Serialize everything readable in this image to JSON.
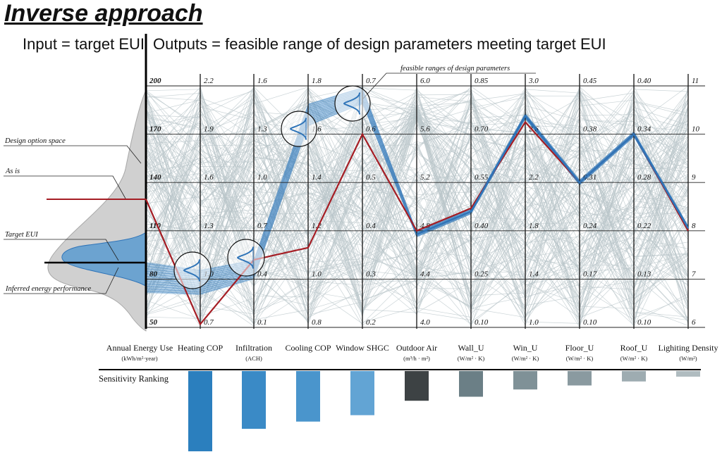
{
  "title": "Inverse approach",
  "input_label": "Input = target EUI",
  "output_label": "Outputs = feasible range of design parameters meeting target EUI",
  "annotations": {
    "design_option_space": "Design option space",
    "as_is": "As is",
    "target_eui": "Target EUI",
    "inferred_energy_performance": "Inferred energy performance",
    "feasible_ranges": "feasible ranges of design parameters"
  },
  "colors": {
    "background_lines": "#b9c6ca",
    "as_is": "#a51d24",
    "feasible": "#2f74b8",
    "density": "#d0d0d0"
  },
  "chart_data": {
    "type": "parallel-coordinates",
    "axes": [
      {
        "name": "Annual Energy Use",
        "unit": "(kWh/m²·year)",
        "ticks": [
          "200",
          "170",
          "140",
          "110",
          "80",
          "50"
        ]
      },
      {
        "name": "Heating COP",
        "unit": "",
        "ticks": [
          "2.2",
          "1.9",
          "1.6",
          "1.3",
          "1.0",
          "0.7"
        ]
      },
      {
        "name": "Infiltration",
        "unit": "(ACH)",
        "ticks": [
          "1.6",
          "1.3",
          "1.0",
          "0.7",
          "0.4",
          "0.1"
        ]
      },
      {
        "name": "Cooling COP",
        "unit": "",
        "ticks": [
          "1.8",
          "1.6",
          "1.4",
          "1.2",
          "1.0",
          "0.8"
        ]
      },
      {
        "name": "Window SHGC",
        "unit": "",
        "ticks": [
          "0.7",
          "0.6",
          "0.5",
          "0.4",
          "0.3",
          "0.2"
        ]
      },
      {
        "name": "Outdoor Air",
        "unit": "(m³/h · m²)",
        "ticks": [
          "6.0",
          "5.6",
          "5.2",
          "4.8",
          "4.4",
          "4.0"
        ]
      },
      {
        "name": "Wall_U",
        "unit": "(W/m² · K)",
        "ticks": [
          "0.85",
          "0.70",
          "0.55",
          "0.40",
          "0.25",
          "0.10"
        ]
      },
      {
        "name": "Win_U",
        "unit": "(W/m² · K)",
        "ticks": [
          "3.0",
          "2.6",
          "2.2",
          "1.8",
          "1.4",
          "1.0"
        ]
      },
      {
        "name": "Floor_U",
        "unit": "(W/m² · K)",
        "ticks": [
          "0.45",
          "0.38",
          "0.31",
          "0.24",
          "0.17",
          "0.10"
        ]
      },
      {
        "name": "Roof_U",
        "unit": "(W/m² · K)",
        "ticks": [
          "0.40",
          "0.34",
          "0.28",
          "0.22",
          "0.13",
          "0.10"
        ]
      },
      {
        "name": "Lighiting Density",
        "unit": "(W/m²)",
        "ticks": [
          "11",
          "10",
          "9",
          "8",
          "7",
          "6"
        ]
      }
    ],
    "series": [
      {
        "name": "As is",
        "values": [
          118,
          0.72,
          0.52,
          1.13,
          0.6,
          4.8,
          0.47,
          2.7,
          0.31,
          0.34,
          8.0
        ]
      },
      {
        "name": "Target EUI",
        "values": [
          81,
          0.98,
          0.46,
          1.68,
          0.68,
          4.77,
          0.46,
          2.75,
          0.31,
          0.34,
          8.05
        ]
      }
    ],
    "sensitivity_ranking": {
      "label": "Sensitivity Ranking",
      "values": [
        1.0,
        0.72,
        0.63,
        0.55,
        0.37,
        0.32,
        0.23,
        0.18,
        0.13,
        0.07
      ],
      "colors": [
        "#2b7fbe",
        "#3a8ac6",
        "#4a95cc",
        "#62a4d4",
        "#3d4244",
        "#6b7f86",
        "#7f9197",
        "#8a9aa0",
        "#9eacb1",
        "#b0bcc0"
      ]
    }
  }
}
